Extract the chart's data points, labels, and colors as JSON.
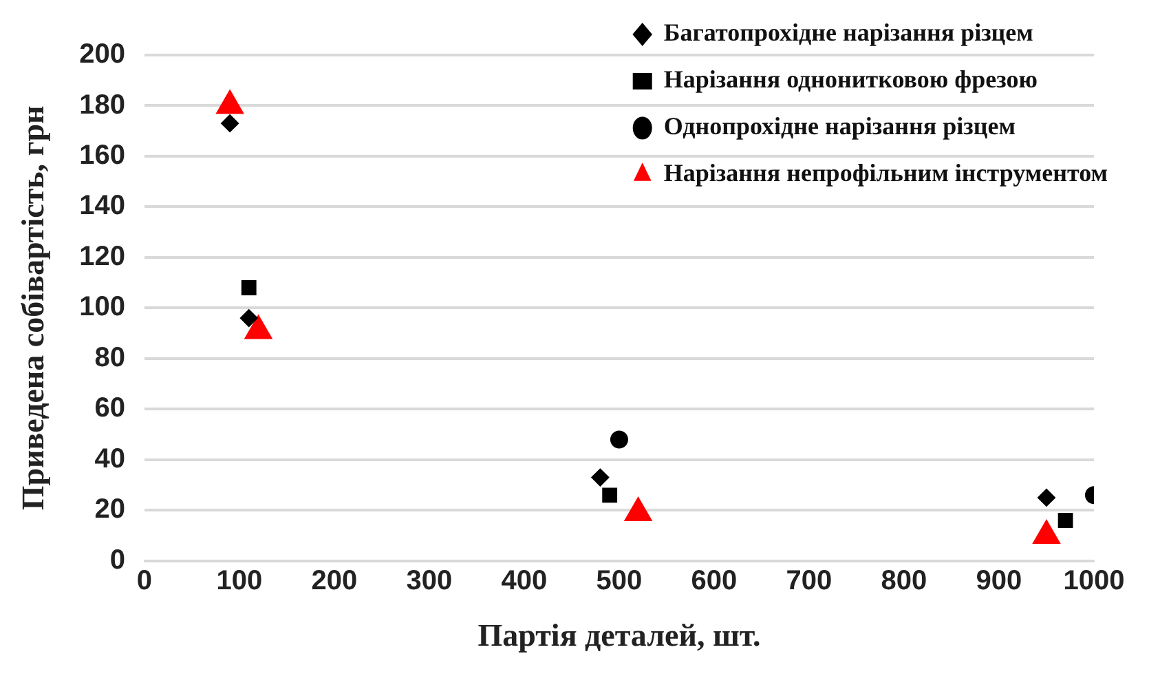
{
  "chart_data": {
    "type": "scatter",
    "xlabel": "Партія деталей, шт.",
    "ylabel": "Приведена собівартість, грн",
    "xlim": [
      0,
      1000
    ],
    "xticks": [
      0,
      100,
      200,
      300,
      400,
      500,
      600,
      700,
      800,
      900,
      1000
    ],
    "ylim": [
      0,
      200
    ],
    "yticks": [
      0,
      20,
      40,
      60,
      80,
      100,
      120,
      140,
      160,
      180,
      200
    ],
    "grid": "y",
    "legend": "top right",
    "series": [
      {
        "name": "Багатопрохідне нарізання різцем",
        "color": "#000000",
        "marker": "diamond",
        "x": [
          90,
          110,
          480,
          950
        ],
        "values": [
          173,
          96,
          33,
          25
        ]
      },
      {
        "name": "Нарізання однонитковою фрезою",
        "color": "#000000",
        "marker": "square",
        "x": [
          110,
          490,
          970
        ],
        "values": [
          108,
          26,
          16
        ]
      },
      {
        "name": "Однопрохідне нарізання різцем",
        "color": "#000000",
        "marker": "circle",
        "x": [
          500,
          1000
        ],
        "values": [
          48,
          26
        ]
      },
      {
        "name": "Нарізання непрофільним інструментом",
        "color": "#ff0000",
        "marker": "triangle",
        "x": [
          90,
          120,
          520,
          950
        ],
        "values": [
          180,
          91,
          19,
          10
        ]
      }
    ]
  }
}
